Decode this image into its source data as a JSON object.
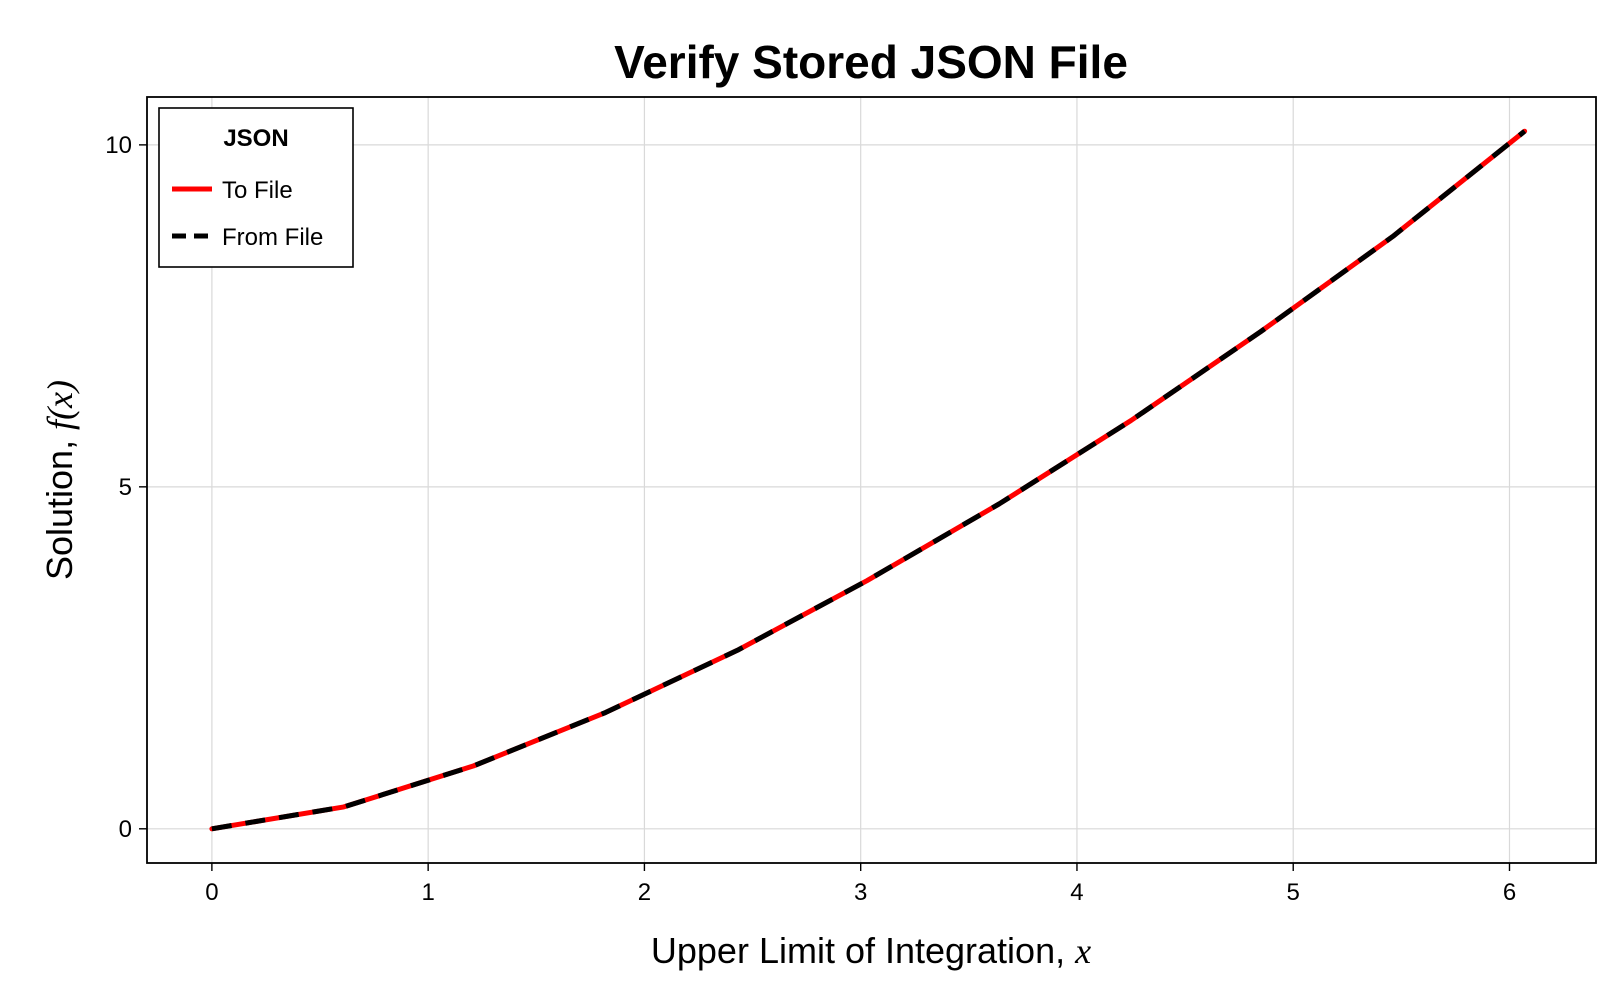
{
  "chart_data": {
    "type": "line",
    "title": "Verify Stored JSON File",
    "xlabel": {
      "text": "Upper Limit of Integration, ",
      "math": "x"
    },
    "ylabel": {
      "text": "Solution, ",
      "math": "f(x)"
    },
    "xlim": [
      -0.3,
      6.4
    ],
    "ylim": [
      -0.5,
      10.7
    ],
    "xticks": [
      0,
      1,
      2,
      3,
      4,
      5,
      6
    ],
    "xtick_labels": [
      "0",
      "1",
      "2",
      "3",
      "4",
      "5",
      "6"
    ],
    "yticks": [
      0,
      5,
      10
    ],
    "ytick_labels": [
      "0",
      "5",
      "10"
    ],
    "grid": true,
    "legend": {
      "title": "JSON",
      "position": "top-left"
    },
    "x": [
      0,
      0.61,
      1.21,
      1.82,
      2.43,
      3.03,
      3.64,
      4.25,
      4.85,
      5.46,
      6.07
    ],
    "series": [
      {
        "name": "To File",
        "color": "#ff0000",
        "style": "solid",
        "values": [
          0,
          0.32,
          0.92,
          1.7,
          2.61,
          3.63,
          4.75,
          5.97,
          7.27,
          8.66,
          10.2
        ]
      },
      {
        "name": "From File",
        "color": "#000000",
        "style": "dashed",
        "values": [
          0,
          0.32,
          0.92,
          1.7,
          2.61,
          3.63,
          4.75,
          5.97,
          7.27,
          8.66,
          10.2
        ]
      }
    ]
  }
}
